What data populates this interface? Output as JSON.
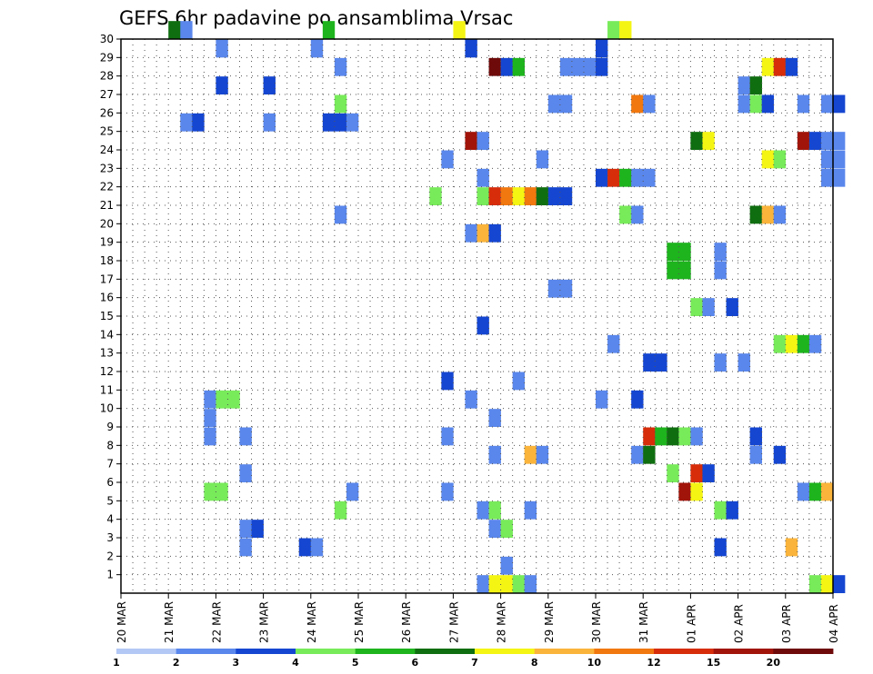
{
  "chart_data": {
    "type": "heatmap",
    "title": "GEFS 6hr padavine po ansamblima Vrsac",
    "xlabel": "",
    "ylabel": "",
    "x_ticks": [
      "20 MAR",
      "21 MAR",
      "22 MAR",
      "23 MAR",
      "24 MAR",
      "25 MAR",
      "26 MAR",
      "27 MAR",
      "28 MAR",
      "29 MAR",
      "30 MAR",
      "31 MAR",
      "01 APR",
      "02 APR",
      "03 APR",
      "04 APR"
    ],
    "y_ticks": [
      1,
      2,
      3,
      4,
      5,
      6,
      7,
      8,
      9,
      10,
      11,
      12,
      13,
      14,
      15,
      16,
      17,
      18,
      19,
      20,
      21,
      22,
      23,
      24,
      25,
      26,
      27,
      28,
      29,
      30
    ],
    "x_unit": "6-hour step from 20 MAR 00Z",
    "y_range": [
      0,
      30
    ],
    "grid": true,
    "colorbar": {
      "thresholds": [
        1,
        2,
        3,
        4,
        5,
        6,
        7,
        8,
        10,
        12,
        15,
        20
      ],
      "colors": [
        "#b4c8f5",
        "#5a87eb",
        "#1446d2",
        "#78eb5a",
        "#1eb41e",
        "#0f6e0f",
        "#f5f514",
        "#fab43c",
        "#f0780f",
        "#d72d0a",
        "#a0140a",
        "#6e0a0a"
      ]
    },
    "cells": [
      [
        4,
        30,
        5
      ],
      [
        5,
        30,
        1
      ],
      [
        8,
        29,
        1
      ],
      [
        17,
        30,
        4
      ],
      [
        16,
        29,
        1
      ],
      [
        28,
        30,
        6
      ],
      [
        29,
        29,
        2
      ],
      [
        41,
        30,
        3
      ],
      [
        42,
        30,
        6
      ],
      [
        40,
        29,
        2
      ],
      [
        31,
        28,
        11
      ],
      [
        32,
        28,
        2
      ],
      [
        33,
        28,
        4
      ],
      [
        37,
        28,
        1
      ],
      [
        38,
        28,
        1
      ],
      [
        39,
        28,
        1
      ],
      [
        40,
        28,
        2
      ],
      [
        18,
        28,
        1
      ],
      [
        54,
        28,
        6
      ],
      [
        55,
        28,
        9
      ],
      [
        56,
        28,
        2
      ],
      [
        8,
        27,
        2
      ],
      [
        12,
        27,
        2
      ],
      [
        52,
        27,
        1
      ],
      [
        53,
        27,
        5
      ],
      [
        5,
        25,
        1
      ],
      [
        6,
        25,
        2
      ],
      [
        12,
        25,
        1
      ],
      [
        17,
        25,
        2
      ],
      [
        18,
        25,
        2
      ],
      [
        19,
        25,
        1
      ],
      [
        18,
        26,
        3
      ],
      [
        36,
        26,
        1
      ],
      [
        37,
        26,
        1
      ],
      [
        43,
        26,
        8
      ],
      [
        44,
        26,
        1
      ],
      [
        52,
        26,
        1
      ],
      [
        53,
        26,
        3
      ],
      [
        54,
        26,
        2
      ],
      [
        57,
        26,
        1
      ],
      [
        59,
        26,
        1
      ],
      [
        60,
        26,
        2
      ],
      [
        29,
        24,
        10
      ],
      [
        30,
        24,
        1
      ],
      [
        48,
        24,
        5
      ],
      [
        49,
        24,
        6
      ],
      [
        57,
        24,
        10
      ],
      [
        58,
        24,
        2
      ],
      [
        59,
        24,
        1
      ],
      [
        60,
        24,
        1
      ],
      [
        59,
        23,
        1
      ],
      [
        60,
        23,
        1
      ],
      [
        59,
        22,
        1
      ],
      [
        60,
        22,
        1
      ],
      [
        27,
        23,
        1
      ],
      [
        35,
        23,
        1
      ],
      [
        54,
        23,
        6
      ],
      [
        55,
        23,
        3
      ],
      [
        30,
        22,
        1
      ],
      [
        40,
        22,
        2
      ],
      [
        41,
        22,
        9
      ],
      [
        42,
        22,
        4
      ],
      [
        43,
        22,
        1
      ],
      [
        44,
        22,
        1
      ],
      [
        26,
        21,
        3
      ],
      [
        30,
        21,
        3
      ],
      [
        31,
        21,
        9
      ],
      [
        32,
        21,
        8
      ],
      [
        33,
        21,
        6
      ],
      [
        34,
        21,
        8
      ],
      [
        35,
        21,
        5
      ],
      [
        36,
        21,
        2
      ],
      [
        37,
        21,
        2
      ],
      [
        18,
        20,
        1
      ],
      [
        42,
        20,
        3
      ],
      [
        43,
        20,
        1
      ],
      [
        53,
        20,
        5
      ],
      [
        54,
        20,
        7
      ],
      [
        55,
        20,
        1
      ],
      [
        29,
        19,
        1
      ],
      [
        30,
        19,
        7
      ],
      [
        31,
        19,
        2
      ],
      [
        46,
        18,
        4
      ],
      [
        47,
        18,
        4
      ],
      [
        46,
        17,
        4
      ],
      [
        47,
        17,
        4
      ],
      [
        50,
        18,
        1
      ],
      [
        50,
        17,
        1
      ],
      [
        36,
        16,
        1
      ],
      [
        37,
        16,
        1
      ],
      [
        48,
        15,
        3
      ],
      [
        49,
        15,
        1
      ],
      [
        51,
        15,
        2
      ],
      [
        30,
        14,
        2
      ],
      [
        41,
        13,
        1
      ],
      [
        55,
        13,
        3
      ],
      [
        56,
        13,
        6
      ],
      [
        57,
        13,
        4
      ],
      [
        58,
        13,
        1
      ],
      [
        44,
        12,
        2
      ],
      [
        45,
        12,
        2
      ],
      [
        50,
        12,
        1
      ],
      [
        52,
        12,
        1
      ],
      [
        27,
        11,
        2
      ],
      [
        33,
        11,
        1
      ],
      [
        7,
        10,
        1
      ],
      [
        8,
        10,
        3
      ],
      [
        9,
        10,
        3
      ],
      [
        29,
        10,
        1
      ],
      [
        40,
        10,
        1
      ],
      [
        43,
        10,
        2
      ],
      [
        7,
        9,
        1
      ],
      [
        31,
        9,
        1
      ],
      [
        7,
        8,
        1
      ],
      [
        10,
        8,
        1
      ],
      [
        27,
        8,
        1
      ],
      [
        44,
        8,
        9
      ],
      [
        45,
        8,
        4
      ],
      [
        46,
        8,
        5
      ],
      [
        47,
        8,
        3
      ],
      [
        48,
        8,
        1
      ],
      [
        53,
        8,
        2
      ],
      [
        31,
        7,
        1
      ],
      [
        34,
        7,
        7
      ],
      [
        35,
        7,
        1
      ],
      [
        43,
        7,
        1
      ],
      [
        44,
        7,
        5
      ],
      [
        53,
        7,
        1
      ],
      [
        55,
        7,
        2
      ],
      [
        10,
        6,
        1
      ],
      [
        46,
        6,
        3
      ],
      [
        48,
        6,
        9
      ],
      [
        49,
        6,
        2
      ],
      [
        7,
        5,
        3
      ],
      [
        8,
        5,
        3
      ],
      [
        19,
        5,
        1
      ],
      [
        27,
        5,
        1
      ],
      [
        47,
        5,
        10
      ],
      [
        48,
        5,
        6
      ],
      [
        57,
        5,
        1
      ],
      [
        58,
        5,
        4
      ],
      [
        59,
        5,
        7
      ],
      [
        18,
        4,
        3
      ],
      [
        30,
        4,
        1
      ],
      [
        31,
        4,
        3
      ],
      [
        34,
        4,
        1
      ],
      [
        50,
        4,
        3
      ],
      [
        51,
        4,
        2
      ],
      [
        10,
        3,
        1
      ],
      [
        11,
        3,
        2
      ],
      [
        31,
        3,
        1
      ],
      [
        32,
        3,
        3
      ],
      [
        10,
        2,
        1
      ],
      [
        15,
        2,
        2
      ],
      [
        16,
        2,
        1
      ],
      [
        50,
        2,
        2
      ],
      [
        56,
        2,
        7
      ],
      [
        32,
        1,
        1
      ],
      [
        30,
        0,
        1
      ],
      [
        31,
        0,
        6
      ],
      [
        32,
        0,
        6
      ],
      [
        33,
        0,
        3
      ],
      [
        34,
        0,
        1
      ],
      [
        58,
        0,
        3
      ],
      [
        59,
        0,
        6
      ],
      [
        60,
        0,
        2
      ]
    ]
  },
  "labels": {
    "title": "GEFS 6hr padavine po ansamblima Vrsac",
    "colorbar_labels": [
      "1",
      "2",
      "3",
      "4",
      "5",
      "6",
      "7",
      "8",
      "10",
      "12",
      "15",
      "20"
    ]
  }
}
